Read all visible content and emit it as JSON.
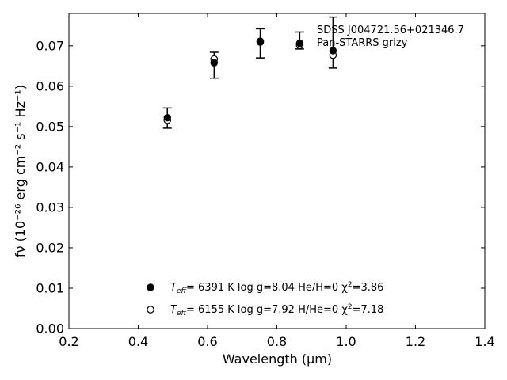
{
  "chart_data": {
    "type": "scatter",
    "title": "",
    "xlabel": "Wavelength (μm)",
    "ylabel": "fν (10⁻²⁶ erg cm⁻² s⁻¹ Hz⁻¹)",
    "xlim": [
      0.2,
      1.4
    ],
    "ylim": [
      0.0,
      0.078
    ],
    "x_ticks": [
      "0.2",
      "0.4",
      "0.6",
      "0.8",
      "1.0",
      "1.2",
      "1.4"
    ],
    "y_ticks": [
      "0.00",
      "0.01",
      "0.02",
      "0.03",
      "0.04",
      "0.05",
      "0.06",
      "0.07"
    ],
    "grid": false,
    "legend_placement": "bottom-center",
    "annotation": {
      "object_name": "SDSS J004721.56+021346.7",
      "survey": "Pan-STARRS grizy"
    },
    "observed": {
      "x": [
        0.484,
        0.619,
        0.752,
        0.866,
        0.962
      ],
      "y": [
        0.0521,
        0.0652,
        0.0706,
        0.0713,
        0.0708
      ],
      "yerr": [
        0.0025,
        0.0032,
        0.0036,
        0.0021,
        0.0063
      ]
    },
    "series": [
      {
        "marker": "filled",
        "teff_label": "T",
        "teff_sub": "eff",
        "params": "=  6391 K  log g=8.04  He/H=0  χ",
        "chi_sup": "2",
        "chi_val": "=3.86",
        "x": [
          0.484,
          0.619,
          0.752,
          0.866,
          0.962
        ],
        "y": [
          0.0522,
          0.0658,
          0.0709,
          0.0706,
          0.0688
        ]
      },
      {
        "marker": "open",
        "teff_label": "T",
        "teff_sub": "eff",
        "params": "=  6155 K  log g=7.92  H/He=0  χ",
        "chi_sup": "2",
        "chi_val": "=7.18",
        "x": [
          0.484,
          0.619,
          0.752,
          0.866,
          0.962
        ],
        "y": [
          0.0516,
          0.0667,
          0.0711,
          0.0701,
          0.0677
        ]
      }
    ]
  }
}
